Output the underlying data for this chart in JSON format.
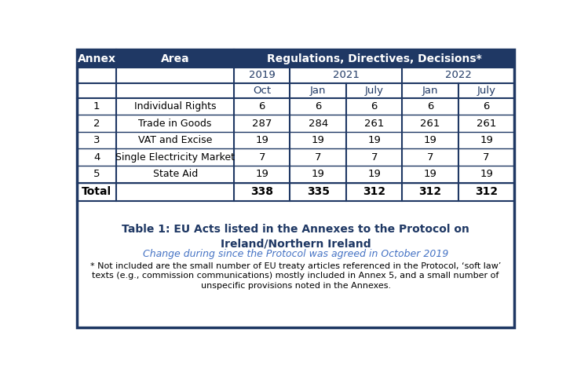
{
  "title_line1": "Table 1: EU Acts listed in the Annexes to the Protocol on",
  "title_line2": "Ireland/Northern Ireland",
  "subtitle": "Change during since the Protocol was agreed in October 2019",
  "footnote": "* Not included are the small number of EU treaty articles referenced in the Protocol, ‘soft law’\ntexts (e.g., commission communications) mostly included in Annex 5, and a small number of\nunspecific provisions noted in the Annexes.",
  "data_rows": [
    [
      "1",
      "Individual Rights",
      "6",
      "6",
      "6",
      "6",
      "6"
    ],
    [
      "2",
      "Trade in Goods",
      "287",
      "284",
      "261",
      "261",
      "261"
    ],
    [
      "3",
      "VAT and Excise",
      "19",
      "19",
      "19",
      "19",
      "19"
    ],
    [
      "4",
      "Single Electricity Market",
      "7",
      "7",
      "7",
      "7",
      "7"
    ],
    [
      "5",
      "State Aid",
      "19",
      "19",
      "19",
      "19",
      "19"
    ]
  ],
  "total_row": [
    "Total",
    "",
    "338",
    "335",
    "312",
    "312",
    "312"
  ],
  "header_bg": "#1F3864",
  "header_text": "#FFFFFF",
  "col_header_text": "#1F3864",
  "title_color": "#1F3864",
  "subtitle_color": "#4472C4",
  "body_text": "#000000",
  "border_color": "#1F3864",
  "bg_color": "#FFFFFF"
}
